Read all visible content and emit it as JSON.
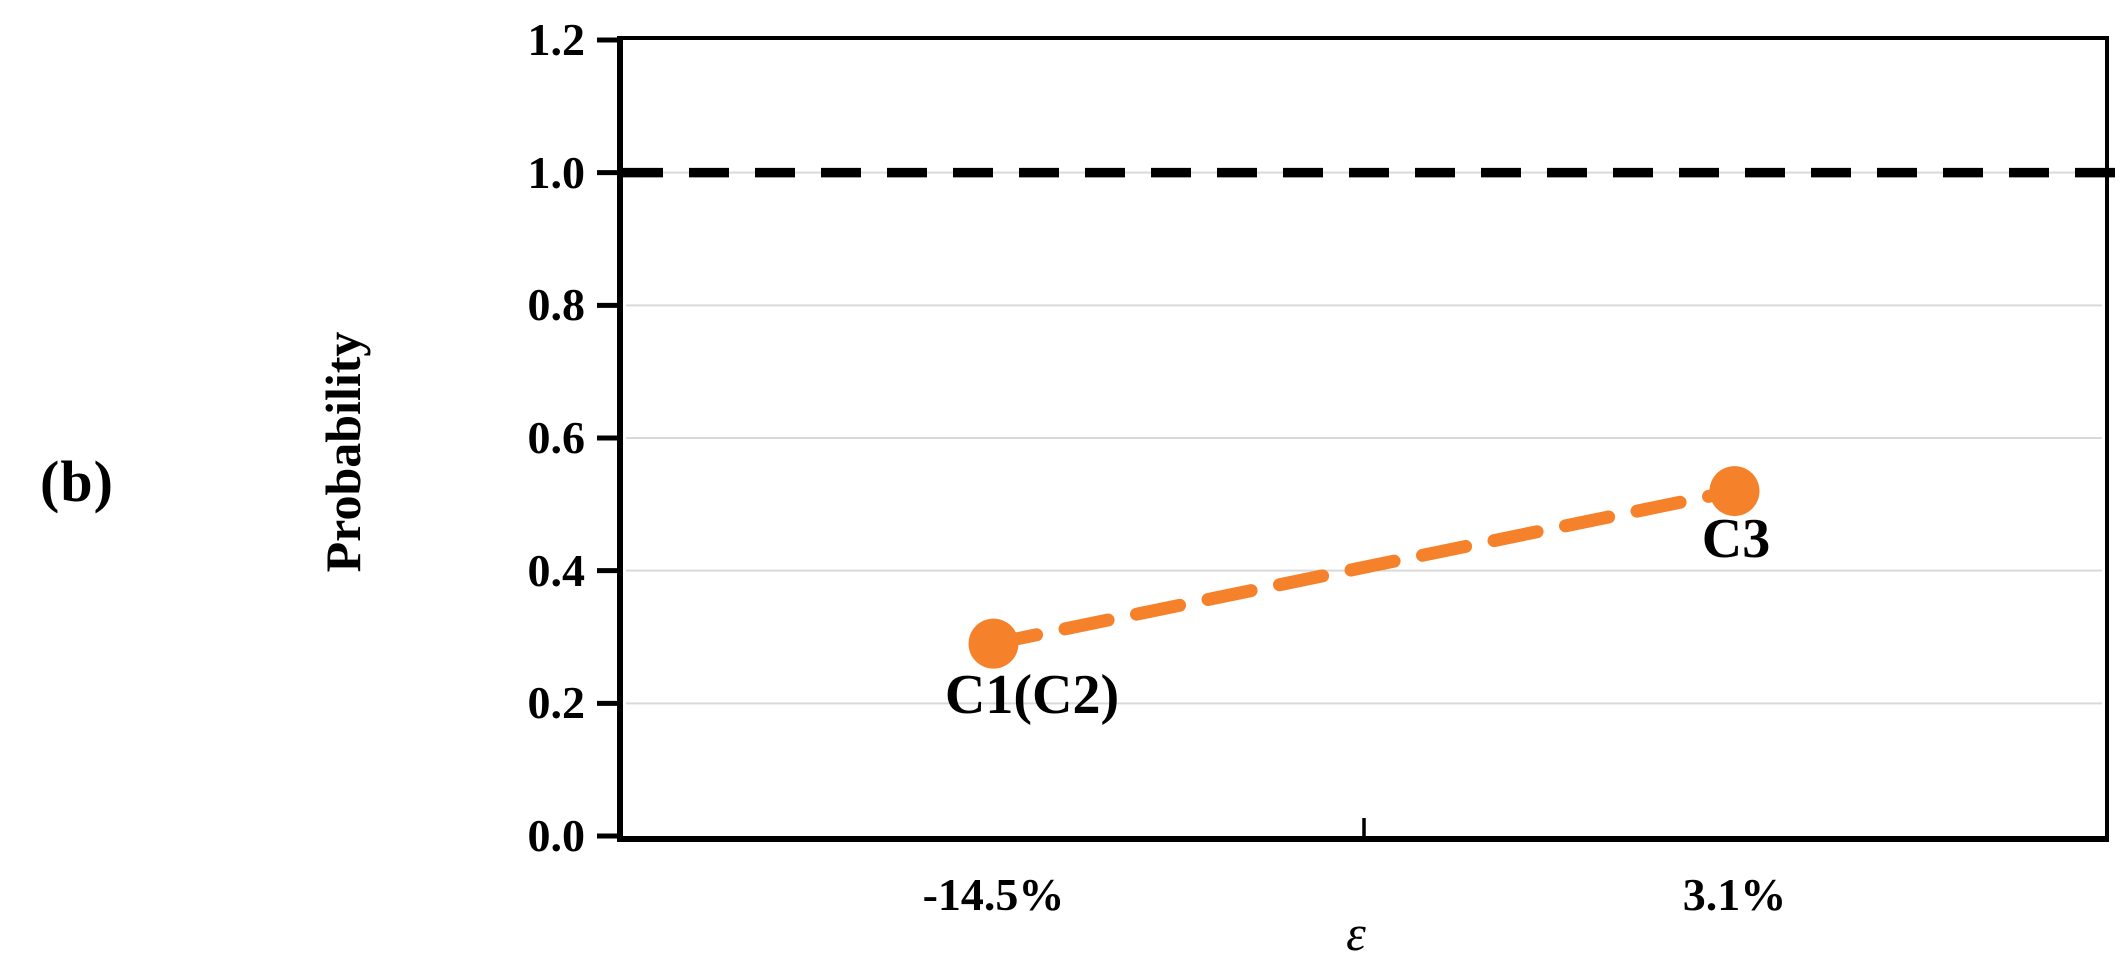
{
  "figure": {
    "label": "(b)"
  },
  "chart_data": {
    "type": "line",
    "title": "",
    "xlabel": "ε",
    "ylabel": "Probability",
    "categories": [
      "-14.5%",
      "3.1%"
    ],
    "series": [
      {
        "name": "Probability",
        "values": [
          0.29,
          0.52
        ],
        "color": "#F5812B",
        "line_style": "dashed",
        "marker": "circle"
      }
    ],
    "point_labels": [
      "C1(C2)",
      "C3"
    ],
    "reference_line": {
      "value": 1.0,
      "color": "#000000",
      "style": "dashed"
    },
    "ylim": [
      0,
      1.2
    ],
    "yticks": [
      0.0,
      0.2,
      0.4,
      0.6,
      0.8,
      1.0,
      1.2
    ],
    "ytick_labels": [
      "0.0",
      "0.2",
      "0.4",
      "0.6",
      "0.8",
      "1.0",
      "1.2"
    ],
    "grid": "horizontal",
    "gridline_color": "#D9D9D9",
    "axis_color": "#000000",
    "legend": "none"
  }
}
